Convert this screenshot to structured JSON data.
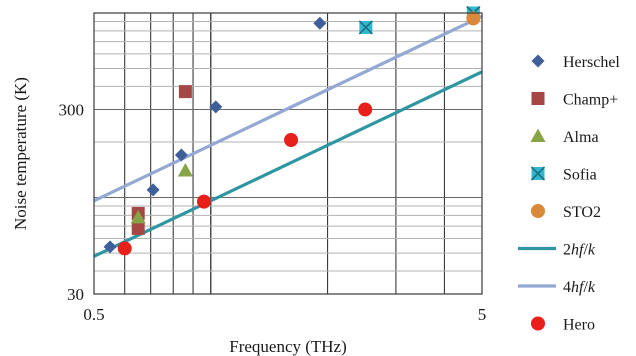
{
  "chart_data": {
    "type": "scatter",
    "xlabel": "Frequency (THz)",
    "ylabel": "Noise temperature (K)",
    "xscale": "log",
    "yscale": "log",
    "xlim": [
      0.5,
      5.0
    ],
    "ylim": [
      30,
      1000
    ],
    "xticks": [
      {
        "value": 0.5,
        "label": "0.5"
      },
      {
        "value": 5,
        "label": "5"
      }
    ],
    "yticks": [
      {
        "value": 30,
        "label": "30"
      },
      {
        "value": 300,
        "label": "300"
      }
    ],
    "grid": true,
    "legend_position": "right",
    "series": [
      {
        "name": "Herschel",
        "marker": "diamond",
        "color": "#3f5f9a",
        "points": [
          [
            0.55,
            54
          ],
          [
            0.71,
            110
          ],
          [
            0.84,
            170
          ],
          [
            1.03,
            310
          ],
          [
            1.91,
            880
          ]
        ]
      },
      {
        "name": "Champ+",
        "marker": "square",
        "color": "#a54745",
        "points": [
          [
            0.65,
            68
          ],
          [
            0.65,
            82
          ],
          [
            0.86,
            375
          ]
        ]
      },
      {
        "name": "Alma",
        "marker": "triangle",
        "color": "#86a346",
        "points": [
          [
            0.65,
            78
          ],
          [
            0.86,
            140
          ]
        ]
      },
      {
        "name": "Sofia",
        "marker": "x-square",
        "color": "#31b8cf",
        "points": [
          [
            2.51,
            835
          ],
          [
            4.75,
            1000
          ]
        ]
      },
      {
        "name": "STO2",
        "marker": "circle",
        "color": "#d9893a",
        "points": [
          [
            4.75,
            935
          ]
        ]
      },
      {
        "name": "2hf/k",
        "marker": "line",
        "color": "#2e96a3",
        "points": [
          [
            0.5,
            48
          ],
          [
            5.0,
            480
          ]
        ]
      },
      {
        "name": "4hf/k",
        "marker": "line",
        "color": "#93a9d3",
        "points": [
          [
            0.5,
            96
          ],
          [
            5.0,
            960
          ]
        ]
      },
      {
        "name": "Hero",
        "marker": "circle",
        "color": "#e8201c",
        "points": [
          [
            0.6,
            53
          ],
          [
            0.96,
            95
          ],
          [
            1.61,
            205
          ],
          [
            2.5,
            300
          ]
        ]
      }
    ]
  }
}
